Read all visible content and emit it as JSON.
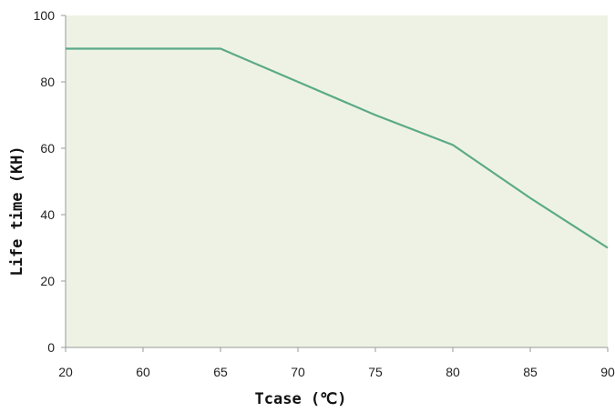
{
  "chart_data": {
    "type": "line",
    "title": "",
    "xlabel": "Tcase (℃)",
    "ylabel": "Life time (KH)",
    "categories": [
      "20",
      "60",
      "65",
      "70",
      "75",
      "80",
      "85",
      "90"
    ],
    "ylim": [
      0,
      100
    ],
    "yticks": [
      "0",
      "20",
      "40",
      "60",
      "80",
      "100"
    ],
    "series": [
      {
        "values": [
          90,
          90,
          90,
          80,
          70,
          61,
          45,
          30
        ]
      }
    ],
    "grid": false,
    "legend": "none",
    "colors": {
      "plot_background": "#eef2e4",
      "line": "#5aaa88",
      "axis": "#9a9a9a"
    }
  }
}
